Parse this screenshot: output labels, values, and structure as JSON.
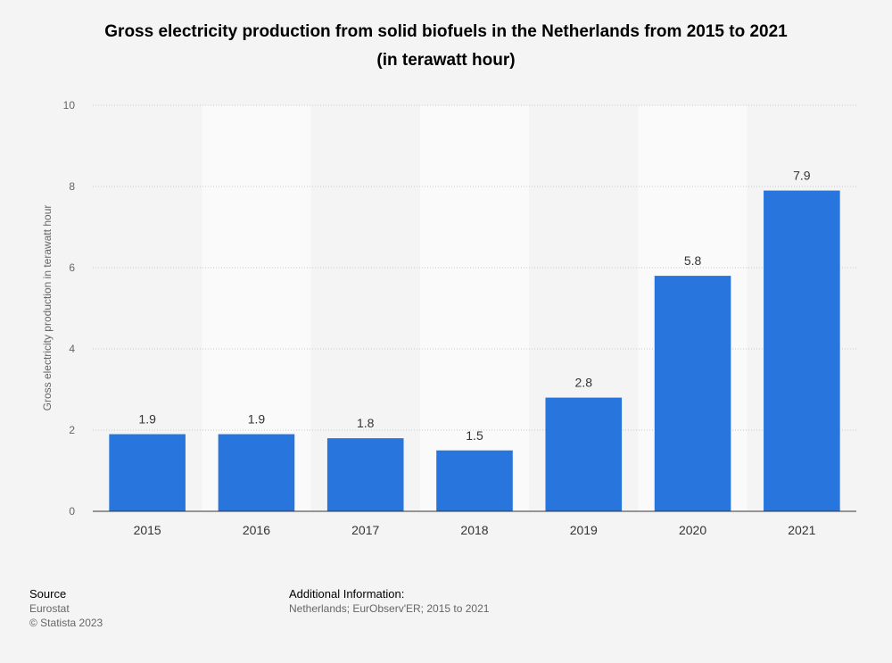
{
  "chart_data": {
    "type": "bar",
    "title": "Gross electricity production from solid biofuels in the Netherlands from 2015 to 2021 (in terawatt hour)",
    "title_line1": "Gross electricity production from solid biofuels in the Netherlands from 2015 to 2021",
    "title_line2": "(in terawatt hour)",
    "categories": [
      "2015",
      "2016",
      "2017",
      "2018",
      "2019",
      "2020",
      "2021"
    ],
    "values": [
      1.9,
      1.9,
      1.8,
      1.5,
      2.8,
      5.8,
      7.9
    ],
    "value_labels": [
      "1.9",
      "1.9",
      "1.8",
      "1.5",
      "2.8",
      "5.8",
      "7.9"
    ],
    "xlabel": "",
    "ylabel": "Gross electricity production in terawatt hour",
    "ylim": [
      0,
      10
    ],
    "yticks": [
      0,
      2,
      4,
      6,
      8,
      10
    ],
    "grid": true,
    "bar_color": "#2876dd",
    "band_color": "#fafafa"
  },
  "footer": {
    "source_heading": "Source",
    "source_lines": [
      "Eurostat",
      "© Statista 2023"
    ],
    "info_heading": "Additional Information:",
    "info_text": "Netherlands; EurObserv'ER; 2015 to 2021"
  }
}
